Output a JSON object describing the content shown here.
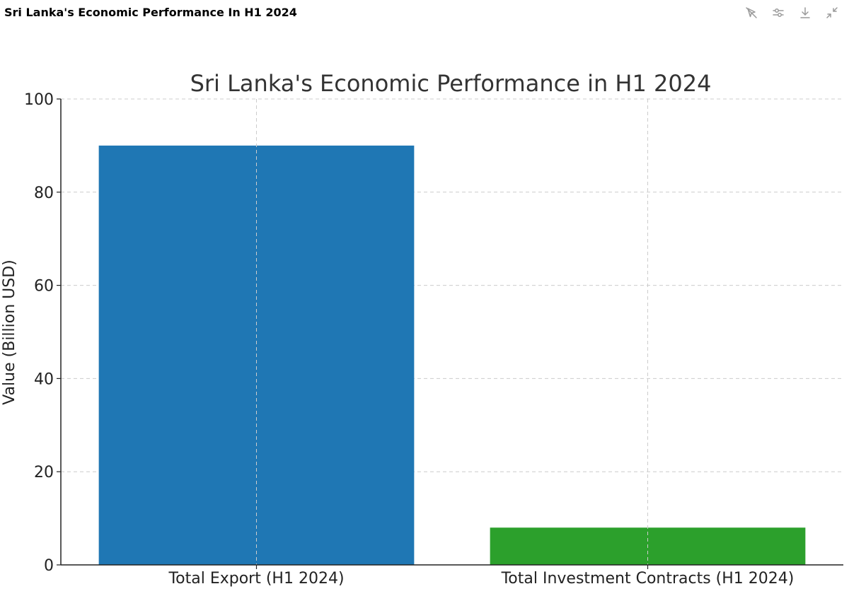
{
  "header": {
    "title": "Sri Lanka's Economic Performance In H1 2024",
    "toolbar": [
      {
        "name": "cursor-off-icon",
        "label": "Disable interactivity"
      },
      {
        "name": "sliders-icon",
        "label": "Customize chart"
      },
      {
        "name": "download-icon",
        "label": "Download"
      },
      {
        "name": "collapse-icon",
        "label": "Collapse"
      }
    ]
  },
  "chart_data": {
    "type": "bar",
    "title": "Sri Lanka's Economic Performance in H1 2024",
    "xlabel": "",
    "ylabel": "Value (Billion USD)",
    "categories": [
      "Total Export (H1 2024)",
      "Total Investment Contracts (H1 2024)"
    ],
    "values": [
      90,
      8
    ],
    "colors": [
      "#1f77b4",
      "#2ca02c"
    ],
    "ylim": [
      0,
      100
    ],
    "yticks": [
      0,
      20,
      40,
      60,
      80,
      100
    ],
    "grid": true
  }
}
